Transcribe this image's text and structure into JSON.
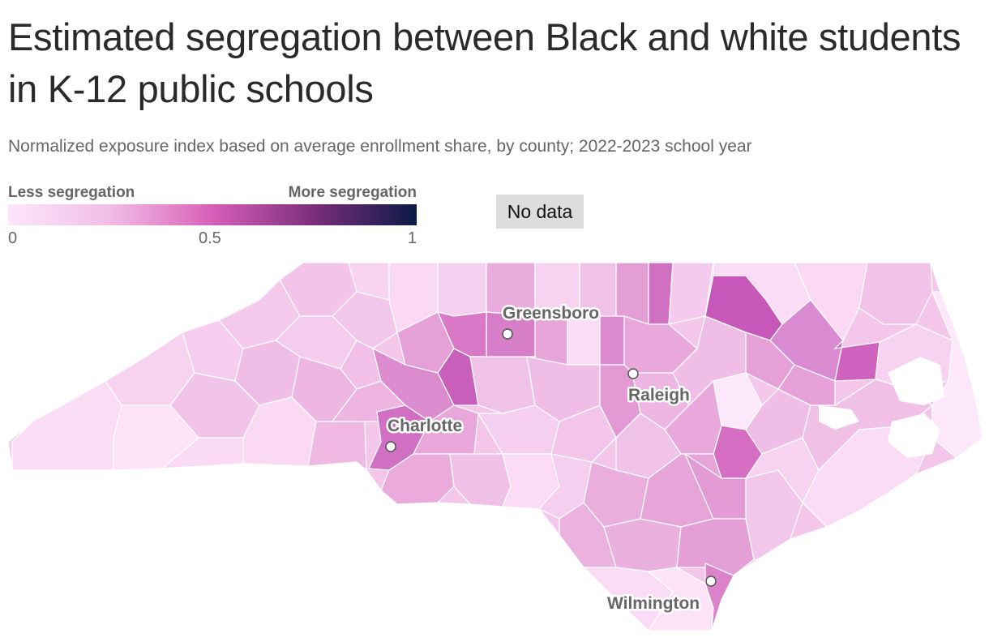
{
  "title": "Estimated segregation between Black and white students in K-12 public schools",
  "subtitle": "Normalized exposure index based on average enrollment share, by county; 2022-2023 school year",
  "legend": {
    "label_left": "Less segregation",
    "label_right": "More segregation",
    "ticks": [
      "0",
      "0.5",
      "1"
    ],
    "colors": [
      "#fde6fb",
      "#f1bde6",
      "#d85fb8",
      "#7a2e7a",
      "#0b1a45"
    ],
    "no_data_label": "No data",
    "no_data_color": "#dddddd"
  },
  "chart_data": {
    "type": "choropleth",
    "region": "North Carolina counties",
    "scale_range": [
      0,
      1
    ],
    "cities": [
      {
        "name": "Greensboro"
      },
      {
        "name": "Raleigh"
      },
      {
        "name": "Charlotte"
      },
      {
        "name": "Wilmington"
      }
    ]
  }
}
